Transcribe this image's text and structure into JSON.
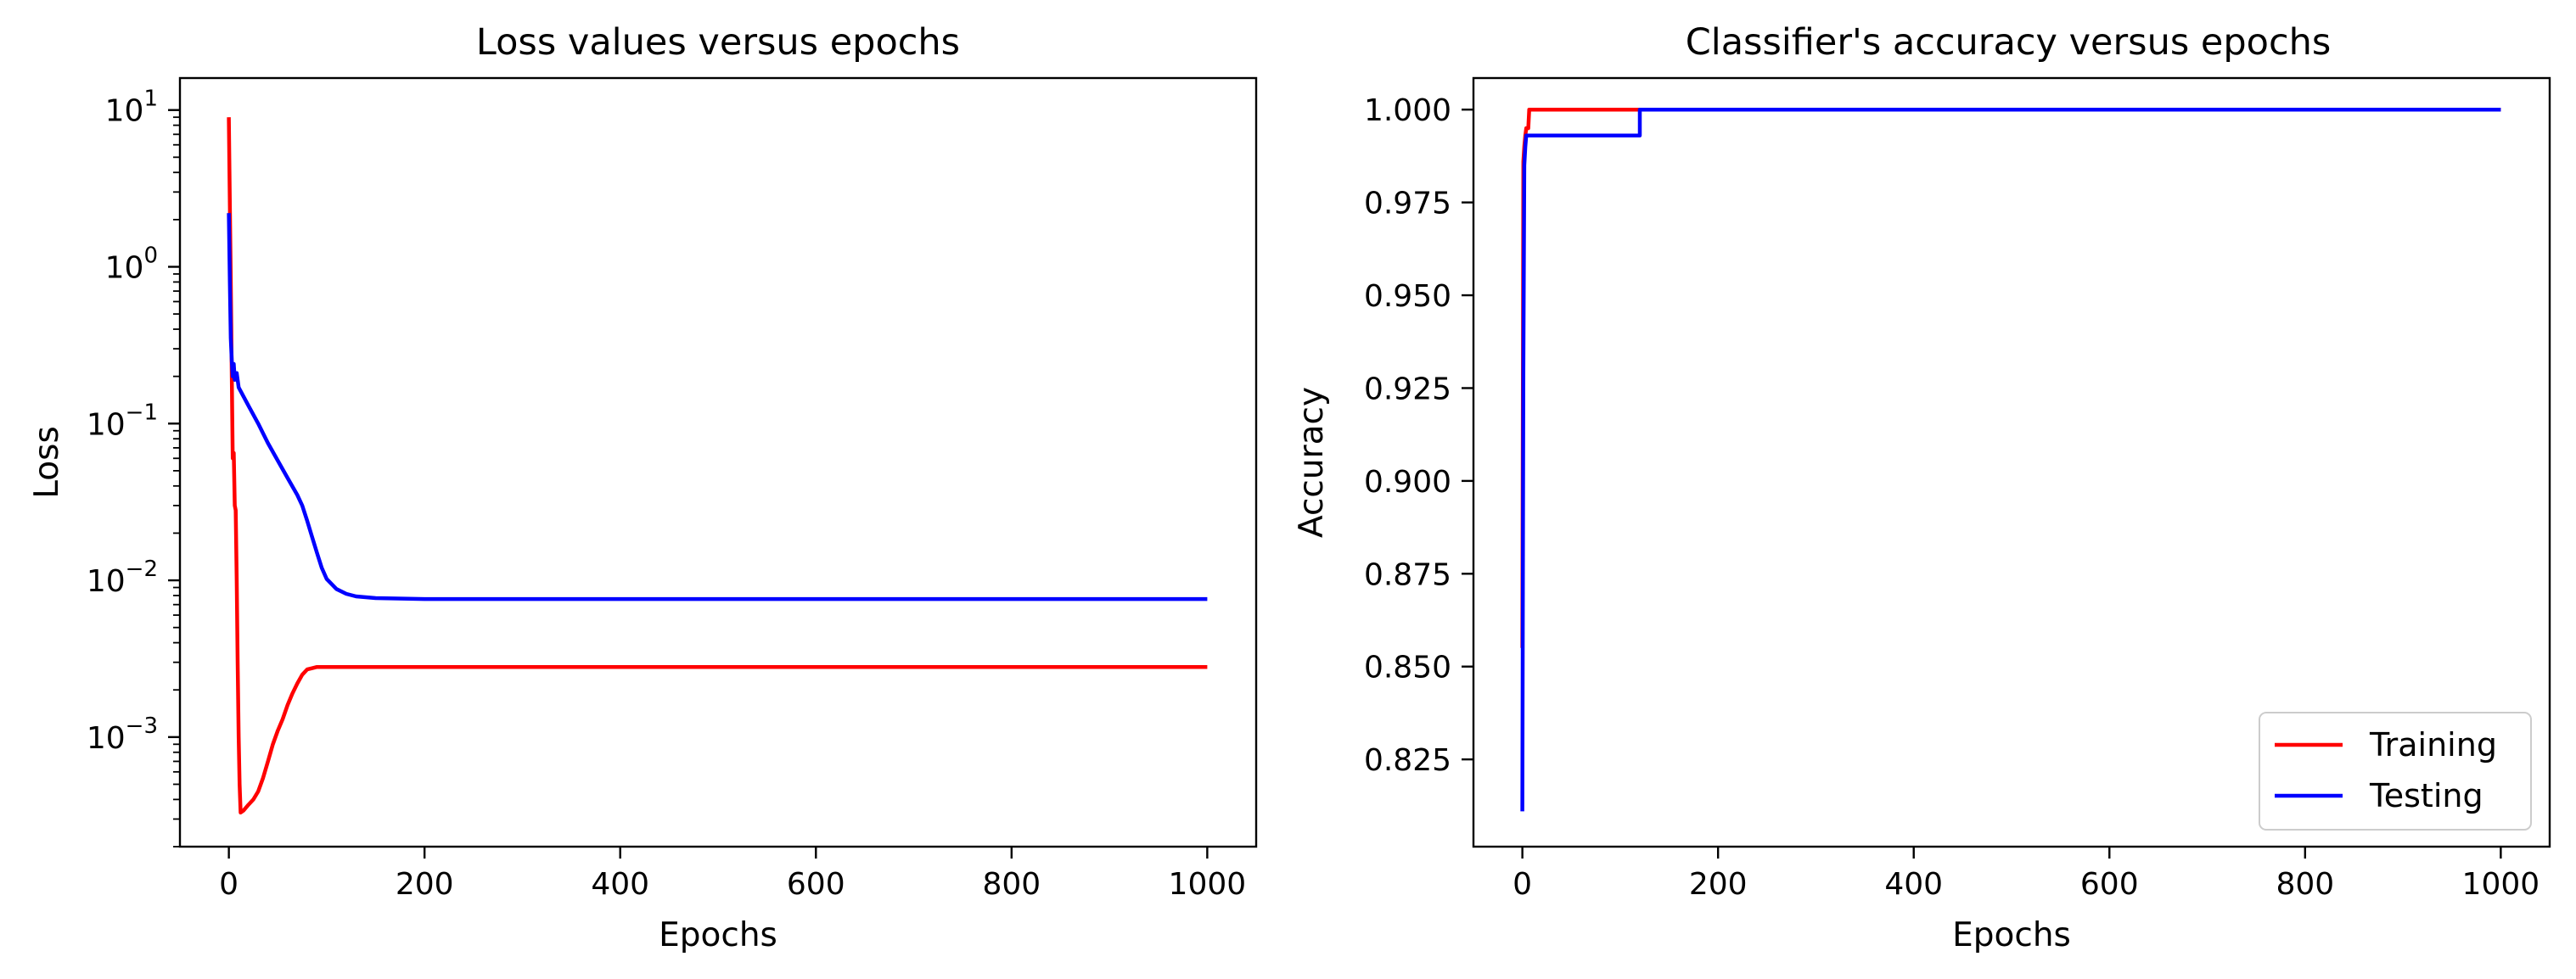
{
  "chart_data": [
    {
      "type": "line",
      "title": "Loss values versus epochs",
      "xlabel": "Epochs",
      "ylabel": "Loss",
      "yscale": "log",
      "xlim": [
        -50,
        1050
      ],
      "ylim": [
        0.0002,
        16
      ],
      "xticks": [
        0,
        200,
        400,
        600,
        800,
        1000
      ],
      "xtick_labels": [
        "0",
        "200",
        "400",
        "600",
        "800",
        "1000"
      ],
      "yticks": [
        0.001,
        0.01,
        0.1,
        1,
        10
      ],
      "ytick_labels": [
        {
          "base": "10",
          "exp": "−3"
        },
        {
          "base": "10",
          "exp": "−2"
        },
        {
          "base": "10",
          "exp": "−1"
        },
        {
          "base": "10",
          "exp": "0"
        },
        {
          "base": "10",
          "exp": "1"
        }
      ],
      "grid": false,
      "legend": false,
      "series": [
        {
          "color": "#ff0000",
          "x": [
            0,
            1,
            2,
            3,
            4,
            5,
            6,
            7,
            8,
            9,
            10,
            11,
            12,
            15,
            20,
            25,
            30,
            35,
            40,
            45,
            50,
            55,
            60,
            65,
            70,
            75,
            80,
            85,
            90,
            95,
            100,
            110,
            120,
            150,
            200,
            300,
            400,
            500,
            600,
            700,
            800,
            900,
            1000
          ],
          "y": [
            9.0,
            2.5,
            0.8,
            0.2,
            0.06,
            0.065,
            0.03,
            0.028,
            0.01,
            0.003,
            0.001,
            0.0005,
            0.00033,
            0.00034,
            0.00037,
            0.0004,
            0.00045,
            0.00055,
            0.0007,
            0.0009,
            0.0011,
            0.0013,
            0.0016,
            0.0019,
            0.0022,
            0.0025,
            0.0027,
            0.00275,
            0.0028,
            0.0028,
            0.0028,
            0.0028,
            0.0028,
            0.0028,
            0.0028,
            0.0028,
            0.0028,
            0.0028,
            0.0028,
            0.0028,
            0.0028,
            0.0028,
            0.0028
          ]
        },
        {
          "color": "#0000ff",
          "x": [
            0,
            1,
            2,
            3,
            4,
            5,
            6,
            8,
            10,
            20,
            30,
            40,
            50,
            60,
            70,
            75,
            80,
            85,
            90,
            95,
            100,
            110,
            120,
            130,
            150,
            200,
            300,
            400,
            500,
            600,
            700,
            800,
            900,
            1000
          ],
          "y": [
            2.2,
            0.8,
            0.35,
            0.25,
            0.2,
            0.24,
            0.19,
            0.21,
            0.17,
            0.13,
            0.1,
            0.075,
            0.058,
            0.045,
            0.035,
            0.03,
            0.024,
            0.019,
            0.015,
            0.012,
            0.0102,
            0.0088,
            0.0082,
            0.0079,
            0.0077,
            0.0076,
            0.0076,
            0.0076,
            0.0076,
            0.0076,
            0.0076,
            0.0076,
            0.0076,
            0.0076
          ]
        }
      ]
    },
    {
      "type": "line",
      "title": "Classifier's accuracy versus epochs",
      "xlabel": "Epochs",
      "ylabel": "Accuracy",
      "yscale": "linear",
      "xlim": [
        -50,
        1050
      ],
      "ylim": [
        0.8015,
        1.0085
      ],
      "xticks": [
        0,
        200,
        400,
        600,
        800,
        1000
      ],
      "xtick_labels": [
        "0",
        "200",
        "400",
        "600",
        "800",
        "1000"
      ],
      "yticks": [
        0.825,
        0.85,
        0.875,
        0.9,
        0.925,
        0.95,
        0.975,
        1.0
      ],
      "ytick_labels": [
        "0.825",
        "0.850",
        "0.875",
        "0.900",
        "0.925",
        "0.950",
        "0.975",
        "1.000"
      ],
      "grid": false,
      "legend": true,
      "legend_position": "lower-right",
      "series": [
        {
          "name": "Training",
          "color": "#ff0000",
          "x": [
            0,
            1,
            2,
            3,
            4,
            5,
            6,
            7,
            8,
            1000
          ],
          "y": [
            0.855,
            0.986,
            0.99,
            0.993,
            0.995,
            0.995,
            0.995,
            1.0,
            1.0,
            1.0
          ]
        },
        {
          "name": "Testing",
          "color": "#0000ff",
          "x": [
            0,
            1,
            2,
            3,
            4,
            120,
            120,
            1000
          ],
          "y": [
            0.811,
            0.93,
            0.985,
            0.99,
            0.993,
            0.993,
            1.0,
            1.0
          ]
        }
      ]
    }
  ]
}
